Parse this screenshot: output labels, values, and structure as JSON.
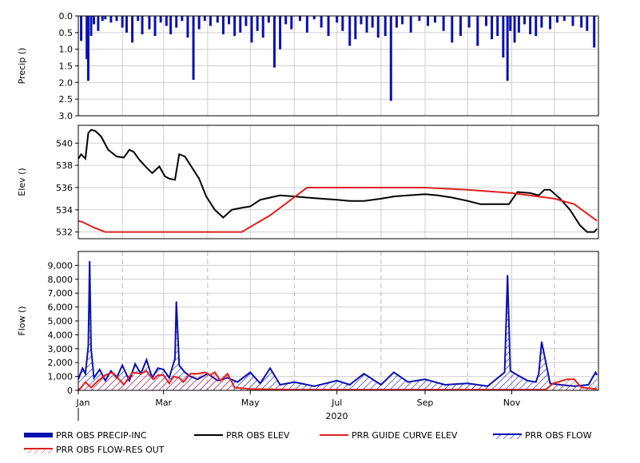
{
  "chart_data": [
    {
      "type": "bar",
      "ylabel": "Precip ()",
      "ylim": [
        0,
        3.0
      ],
      "inverted_y": true,
      "yticks": [
        "0.0",
        "0.5",
        "1.0",
        "1.5",
        "2.0",
        "2.5",
        "3.0"
      ],
      "series": [
        {
          "name": "PRR OBS PRECIP-INC",
          "color": "#0a10b0",
          "x": [
            "2020-01-03",
            "2020-01-07",
            "2020-01-08",
            "2020-01-10",
            "2020-01-12",
            "2020-01-15",
            "2020-01-18",
            "2020-01-20",
            "2020-01-24",
            "2020-01-28",
            "2020-02-01",
            "2020-02-04",
            "2020-02-08",
            "2020-02-12",
            "2020-02-15",
            "2020-02-20",
            "2020-02-24",
            "2020-02-28",
            "2020-03-03",
            "2020-03-06",
            "2020-03-10",
            "2020-03-14",
            "2020-03-18",
            "2020-03-22",
            "2020-03-26",
            "2020-03-30",
            "2020-04-03",
            "2020-04-08",
            "2020-04-12",
            "2020-04-16",
            "2020-04-20",
            "2020-04-24",
            "2020-04-28",
            "2020-05-02",
            "2020-05-06",
            "2020-05-10",
            "2020-05-14",
            "2020-05-18",
            "2020-05-22",
            "2020-05-26",
            "2020-05-30",
            "2020-06-05",
            "2020-06-10",
            "2020-06-15",
            "2020-06-20",
            "2020-06-25",
            "2020-07-01",
            "2020-07-05",
            "2020-07-10",
            "2020-07-14",
            "2020-07-18",
            "2020-07-22",
            "2020-07-26",
            "2020-07-30",
            "2020-08-04",
            "2020-08-08",
            "2020-08-12",
            "2020-08-16",
            "2020-08-22",
            "2020-08-28",
            "2020-09-03",
            "2020-09-08",
            "2020-09-14",
            "2020-09-20",
            "2020-09-26",
            "2020-10-02",
            "2020-10-08",
            "2020-10-14",
            "2020-10-18",
            "2020-10-22",
            "2020-10-26",
            "2020-10-29",
            "2020-10-31",
            "2020-11-03",
            "2020-11-06",
            "2020-11-10",
            "2020-11-14",
            "2020-11-18",
            "2020-11-22",
            "2020-11-28",
            "2020-12-03",
            "2020-12-08",
            "2020-12-14",
            "2020-12-20",
            "2020-12-24",
            "2020-12-29"
          ],
          "values": [
            0.75,
            1.3,
            1.95,
            0.6,
            0.25,
            0.45,
            0.15,
            0.1,
            0.2,
            0.15,
            0.35,
            0.5,
            0.8,
            0.15,
            0.55,
            0.4,
            0.6,
            0.2,
            0.3,
            0.55,
            0.35,
            0.15,
            0.65,
            1.92,
            0.4,
            0.15,
            0.3,
            0.2,
            0.55,
            0.25,
            0.6,
            0.5,
            0.3,
            0.8,
            0.45,
            0.65,
            0.2,
            1.55,
            1.0,
            0.25,
            0.4,
            0.15,
            0.5,
            0.1,
            0.35,
            0.6,
            0.2,
            0.45,
            0.9,
            0.7,
            0.25,
            0.5,
            0.35,
            0.65,
            0.6,
            2.55,
            0.35,
            0.25,
            0.5,
            0.15,
            0.3,
            0.2,
            0.45,
            0.8,
            0.6,
            0.35,
            0.9,
            0.3,
            0.7,
            0.6,
            1.25,
            1.95,
            0.45,
            0.8,
            0.5,
            0.25,
            0.55,
            0.6,
            0.35,
            0.4,
            0.2,
            0.15,
            0.3,
            0.35,
            0.45,
            0.95
          ]
        }
      ]
    },
    {
      "type": "line",
      "ylabel": "Elev ()",
      "ylim": [
        531.4,
        541.6
      ],
      "yticks": [
        "532",
        "534",
        "536",
        "538",
        "540"
      ],
      "series": [
        {
          "name": "PRR OBS ELEV",
          "color": "#000000",
          "x": [
            "2020-01-01",
            "2020-01-03",
            "2020-01-06",
            "2020-01-08",
            "2020-01-10",
            "2020-01-13",
            "2020-01-17",
            "2020-01-22",
            "2020-01-28",
            "2020-02-02",
            "2020-02-06",
            "2020-02-09",
            "2020-02-13",
            "2020-02-18",
            "2020-02-22",
            "2020-02-27",
            "2020-03-02",
            "2020-03-05",
            "2020-03-09",
            "2020-03-12",
            "2020-03-16",
            "2020-03-20",
            "2020-03-26",
            "2020-03-31",
            "2020-04-06",
            "2020-04-12",
            "2020-04-18",
            "2020-04-22",
            "2020-04-26",
            "2020-05-01",
            "2020-05-08",
            "2020-05-15",
            "2020-05-22",
            "2020-06-01",
            "2020-06-10",
            "2020-06-20",
            "2020-07-01",
            "2020-07-10",
            "2020-07-20",
            "2020-08-01",
            "2020-08-10",
            "2020-08-20",
            "2020-09-01",
            "2020-09-10",
            "2020-09-20",
            "2020-10-01",
            "2020-10-10",
            "2020-10-20",
            "2020-10-30",
            "2020-11-05",
            "2020-11-14",
            "2020-11-20",
            "2020-11-24",
            "2020-11-28",
            "2020-12-05",
            "2020-12-12",
            "2020-12-19",
            "2020-12-24",
            "2020-12-29",
            "2020-12-31"
          ],
          "values": [
            538.6,
            539.0,
            538.6,
            540.9,
            541.2,
            541.1,
            540.6,
            539.4,
            538.8,
            538.7,
            539.4,
            539.2,
            538.5,
            537.8,
            537.3,
            537.9,
            537.0,
            536.8,
            536.7,
            539.0,
            538.8,
            538.0,
            536.8,
            535.2,
            534.0,
            533.3,
            534.0,
            534.1,
            534.2,
            534.3,
            534.9,
            535.1,
            535.3,
            535.2,
            535.1,
            535.0,
            534.9,
            534.8,
            534.8,
            535.0,
            535.2,
            535.3,
            535.4,
            535.3,
            535.1,
            534.8,
            534.5,
            534.5,
            534.5,
            535.6,
            535.5,
            535.3,
            535.8,
            535.8,
            535.0,
            534.0,
            532.6,
            532.0,
            532.0,
            532.3
          ]
        },
        {
          "name": "PRR GUIDE CURVE ELEV",
          "color": "#e02020",
          "x": [
            "2020-01-01",
            "2020-01-04",
            "2020-01-12",
            "2020-01-20",
            "2020-04-25",
            "2020-05-15",
            "2020-06-10",
            "2020-09-01",
            "2020-10-01",
            "2020-11-01",
            "2020-12-01",
            "2020-12-15",
            "2020-12-31"
          ],
          "values": [
            533.0,
            532.9,
            532.4,
            532.0,
            532.0,
            533.5,
            536.0,
            536.0,
            535.8,
            535.5,
            535.0,
            534.5,
            533.0
          ]
        }
      ]
    },
    {
      "type": "area",
      "ylabel": "Flow ()",
      "xlabel": "2020",
      "ylim": [
        0,
        10000
      ],
      "yticks": [
        "0",
        "1,000",
        "2,000",
        "3,000",
        "4,000",
        "5,000",
        "6,000",
        "7,000",
        "8,000",
        "9,000"
      ],
      "xticks": [
        "Jan",
        "Mar",
        "May",
        "Jul",
        "Sep",
        "Nov"
      ],
      "series": [
        {
          "name": "PRR OBS FLOW",
          "color": "#0a10b0",
          "x": [
            "2020-01-01",
            "2020-01-04",
            "2020-01-06",
            "2020-01-08",
            "2020-01-09",
            "2020-01-10",
            "2020-01-12",
            "2020-01-16",
            "2020-01-20",
            "2020-01-24",
            "2020-01-28",
            "2020-02-01",
            "2020-02-06",
            "2020-02-10",
            "2020-02-14",
            "2020-02-18",
            "2020-02-22",
            "2020-02-26",
            "2020-03-01",
            "2020-03-05",
            "2020-03-09",
            "2020-03-10",
            "2020-03-12",
            "2020-03-16",
            "2020-03-20",
            "2020-03-25",
            "2020-04-01",
            "2020-04-08",
            "2020-04-15",
            "2020-04-22",
            "2020-05-01",
            "2020-05-08",
            "2020-05-15",
            "2020-05-22",
            "2020-06-01",
            "2020-06-15",
            "2020-07-01",
            "2020-07-10",
            "2020-07-20",
            "2020-08-01",
            "2020-08-10",
            "2020-08-20",
            "2020-09-01",
            "2020-09-15",
            "2020-10-01",
            "2020-10-15",
            "2020-10-27",
            "2020-10-29",
            "2020-10-31",
            "2020-11-05",
            "2020-11-12",
            "2020-11-18",
            "2020-11-20",
            "2020-11-22",
            "2020-11-28",
            "2020-12-05",
            "2020-12-15",
            "2020-12-25",
            "2020-12-30",
            "2020-12-31"
          ],
          "values": [
            800,
            1600,
            1200,
            3200,
            9300,
            3000,
            900,
            1500,
            700,
            1400,
            900,
            1800,
            700,
            1900,
            1200,
            2200,
            900,
            1600,
            1500,
            900,
            2300,
            6400,
            1800,
            1300,
            1000,
            800,
            1200,
            700,
            900,
            600,
            1300,
            500,
            1600,
            400,
            600,
            300,
            700,
            400,
            1200,
            400,
            1300,
            600,
            800,
            400,
            500,
            300,
            1300,
            8300,
            1400,
            1100,
            700,
            600,
            1200,
            3500,
            500,
            400,
            300,
            400,
            1300,
            1100
          ]
        },
        {
          "name": "PRR OBS FLOW-RES OUT",
          "color": "#e02020",
          "x": [
            "2020-01-01",
            "2020-01-03",
            "2020-01-06",
            "2020-01-10",
            "2020-01-15",
            "2020-01-20",
            "2020-01-25",
            "2020-01-28",
            "2020-02-02",
            "2020-02-08",
            "2020-02-14",
            "2020-02-18",
            "2020-02-20",
            "2020-02-23",
            "2020-02-26",
            "2020-03-01",
            "2020-03-05",
            "2020-03-08",
            "2020-03-12",
            "2020-03-15",
            "2020-03-20",
            "2020-03-25",
            "2020-03-30",
            "2020-04-03",
            "2020-04-06",
            "2020-04-10",
            "2020-04-15",
            "2020-04-20",
            "2020-05-01",
            "2020-06-01",
            "2020-07-01",
            "2020-08-01",
            "2020-09-01",
            "2020-10-01",
            "2020-11-01",
            "2020-11-25",
            "2020-11-30",
            "2020-12-10",
            "2020-12-15",
            "2020-12-20",
            "2020-12-31"
          ],
          "values": [
            0,
            200,
            600,
            200,
            700,
            1100,
            1300,
            1000,
            400,
            1300,
            1200,
            1400,
            1100,
            800,
            1100,
            1100,
            500,
            1000,
            900,
            600,
            1200,
            1200,
            1300,
            1100,
            1300,
            700,
            1200,
            200,
            100,
            50,
            50,
            50,
            50,
            50,
            50,
            50,
            500,
            800,
            800,
            200,
            100
          ]
        }
      ]
    }
  ],
  "legend": [
    {
      "label": "PRR OBS PRECIP-INC",
      "style": "thick-bar",
      "color": "#0a10b0"
    },
    {
      "label": "PRR OBS ELEV",
      "style": "line",
      "color": "#000000"
    },
    {
      "label": "PRR GUIDE CURVE ELEV",
      "style": "line",
      "color": "#e02020"
    },
    {
      "label": "PRR OBS FLOW",
      "style": "hatch",
      "color": "#0a10b0"
    },
    {
      "label": "PRR OBS FLOW-RES OUT",
      "style": "hatch",
      "color": "#e02020"
    }
  ]
}
